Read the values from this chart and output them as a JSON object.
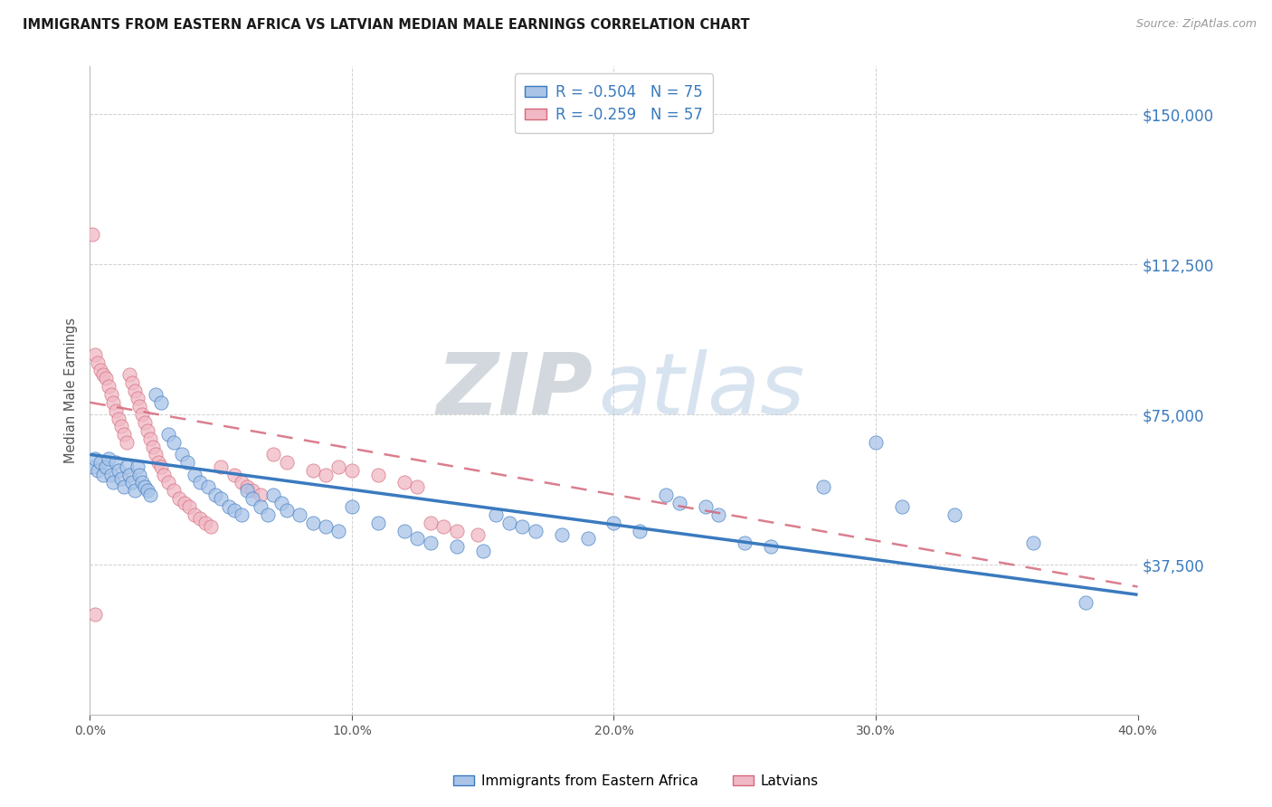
{
  "title": "IMMIGRANTS FROM EASTERN AFRICA VS LATVIAN MEDIAN MALE EARNINGS CORRELATION CHART",
  "source": "Source: ZipAtlas.com",
  "ylabel": "Median Male Earnings",
  "y_ticks": [
    0,
    37500,
    75000,
    112500,
    150000
  ],
  "y_tick_labels": [
    "",
    "$37,500",
    "$75,000",
    "$112,500",
    "$150,000"
  ],
  "x_range": [
    0.0,
    0.4
  ],
  "y_range": [
    0,
    162000
  ],
  "legend_line1": "R = -0.504   N = 75",
  "legend_line2": "R = -0.259   N = 57",
  "bottom_label1": "Immigrants from Eastern Africa",
  "bottom_label2": "Latvians",
  "blue_scatter_x": [
    0.001,
    0.002,
    0.003,
    0.004,
    0.005,
    0.006,
    0.007,
    0.008,
    0.009,
    0.01,
    0.011,
    0.012,
    0.013,
    0.014,
    0.015,
    0.016,
    0.017,
    0.018,
    0.019,
    0.02,
    0.021,
    0.022,
    0.023,
    0.025,
    0.027,
    0.03,
    0.032,
    0.035,
    0.037,
    0.04,
    0.042,
    0.045,
    0.048,
    0.05,
    0.053,
    0.055,
    0.058,
    0.06,
    0.062,
    0.065,
    0.068,
    0.07,
    0.073,
    0.075,
    0.08,
    0.085,
    0.09,
    0.095,
    0.1,
    0.11,
    0.12,
    0.125,
    0.13,
    0.14,
    0.15,
    0.155,
    0.16,
    0.165,
    0.17,
    0.18,
    0.19,
    0.2,
    0.21,
    0.22,
    0.225,
    0.235,
    0.24,
    0.25,
    0.26,
    0.28,
    0.3,
    0.31,
    0.33,
    0.36,
    0.38
  ],
  "blue_scatter_y": [
    62000,
    64000,
    61000,
    63000,
    60000,
    62000,
    64000,
    60000,
    58000,
    63000,
    61000,
    59000,
    57000,
    62000,
    60000,
    58000,
    56000,
    62000,
    60000,
    58000,
    57000,
    56000,
    55000,
    80000,
    78000,
    70000,
    68000,
    65000,
    63000,
    60000,
    58000,
    57000,
    55000,
    54000,
    52000,
    51000,
    50000,
    56000,
    54000,
    52000,
    50000,
    55000,
    53000,
    51000,
    50000,
    48000,
    47000,
    46000,
    52000,
    48000,
    46000,
    44000,
    43000,
    42000,
    41000,
    50000,
    48000,
    47000,
    46000,
    45000,
    44000,
    48000,
    46000,
    55000,
    53000,
    52000,
    50000,
    43000,
    42000,
    57000,
    68000,
    52000,
    50000,
    43000,
    28000
  ],
  "pink_scatter_x": [
    0.001,
    0.002,
    0.003,
    0.004,
    0.005,
    0.006,
    0.007,
    0.008,
    0.009,
    0.01,
    0.011,
    0.012,
    0.013,
    0.014,
    0.015,
    0.016,
    0.017,
    0.018,
    0.019,
    0.02,
    0.021,
    0.022,
    0.023,
    0.024,
    0.025,
    0.026,
    0.027,
    0.028,
    0.03,
    0.032,
    0.034,
    0.036,
    0.038,
    0.04,
    0.042,
    0.044,
    0.046,
    0.05,
    0.055,
    0.058,
    0.06,
    0.062,
    0.065,
    0.07,
    0.075,
    0.085,
    0.09,
    0.095,
    0.1,
    0.11,
    0.12,
    0.125,
    0.13,
    0.135,
    0.14,
    0.148,
    0.002
  ],
  "pink_scatter_y": [
    120000,
    90000,
    88000,
    86000,
    85000,
    84000,
    82000,
    80000,
    78000,
    76000,
    74000,
    72000,
    70000,
    68000,
    85000,
    83000,
    81000,
    79000,
    77000,
    75000,
    73000,
    71000,
    69000,
    67000,
    65000,
    63000,
    62000,
    60000,
    58000,
    56000,
    54000,
    53000,
    52000,
    50000,
    49000,
    48000,
    47000,
    62000,
    60000,
    58000,
    57000,
    56000,
    55000,
    65000,
    63000,
    61000,
    60000,
    62000,
    61000,
    60000,
    58000,
    57000,
    48000,
    47000,
    46000,
    45000,
    25000
  ],
  "blue_line_x": [
    0.0,
    0.4
  ],
  "blue_line_y": [
    65000,
    30000
  ],
  "pink_line_x": [
    0.0,
    0.4
  ],
  "pink_line_y": [
    78000,
    32000
  ],
  "background_color": "#ffffff",
  "grid_color": "#d0d0d0",
  "blue_color": "#3a7abf",
  "pink_color": "#d4687a",
  "blue_scatter_color": "#aac4e8",
  "pink_scatter_color": "#f0b8c4",
  "title_color": "#1a1a1a",
  "right_tick_color": "#3a7abf",
  "source_color": "#999999",
  "legend_text_color": "#3a7abf"
}
